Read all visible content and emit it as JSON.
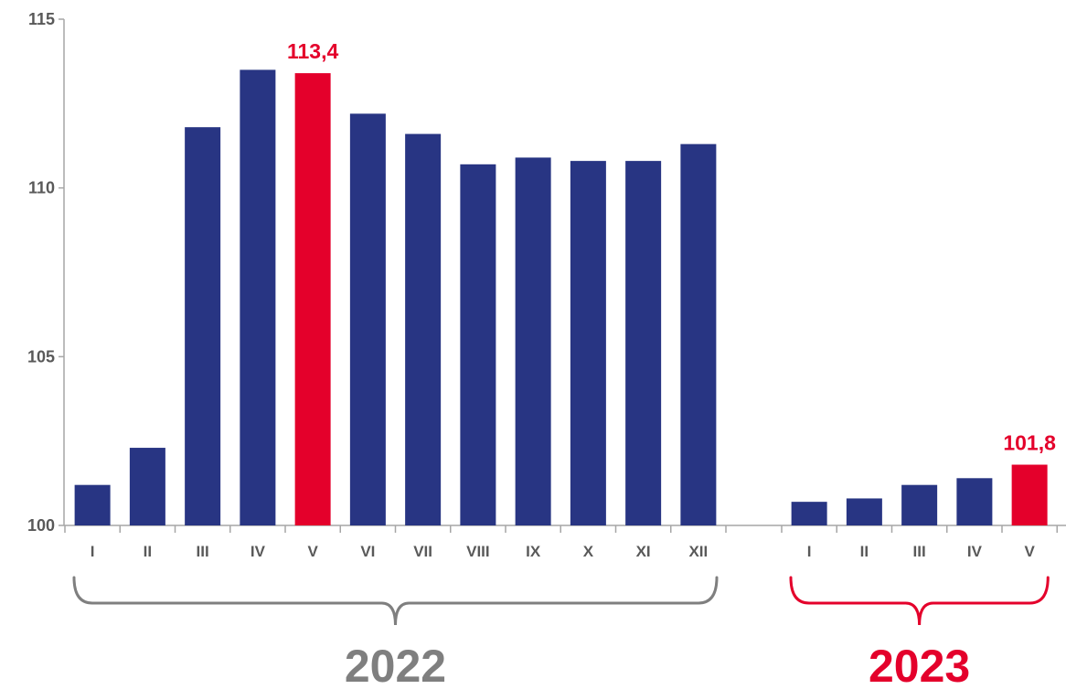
{
  "chart_data": {
    "type": "bar",
    "title": "",
    "xlabel": "",
    "ylabel": "",
    "ylim": [
      100,
      115
    ],
    "yticks": [
      "100",
      "105",
      "110",
      "115"
    ],
    "grid": false,
    "legend": "none",
    "groups": [
      {
        "name": "2022",
        "color": "#7f7f7f",
        "categories": [
          "I",
          "II",
          "III",
          "IV",
          "V",
          "VI",
          "VII",
          "VIII",
          "IX",
          "X",
          "XI",
          "XII"
        ],
        "values": [
          101.2,
          102.3,
          111.8,
          113.5,
          113.4,
          112.2,
          111.6,
          110.7,
          110.9,
          110.8,
          110.8,
          111.3
        ],
        "highlight_index": 4,
        "highlight_label": "113,4"
      },
      {
        "name": "2023",
        "color": "#e4002b",
        "categories": [
          "I",
          "II",
          "III",
          "IV",
          "V"
        ],
        "values": [
          100.7,
          100.8,
          101.2,
          101.4,
          101.8
        ],
        "highlight_index": 4,
        "highlight_label": "101,8"
      }
    ],
    "colors": {
      "bar": "#283583",
      "highlight": "#e4002b",
      "axis": "#a6a6a6",
      "tick_text": "#595959"
    }
  }
}
